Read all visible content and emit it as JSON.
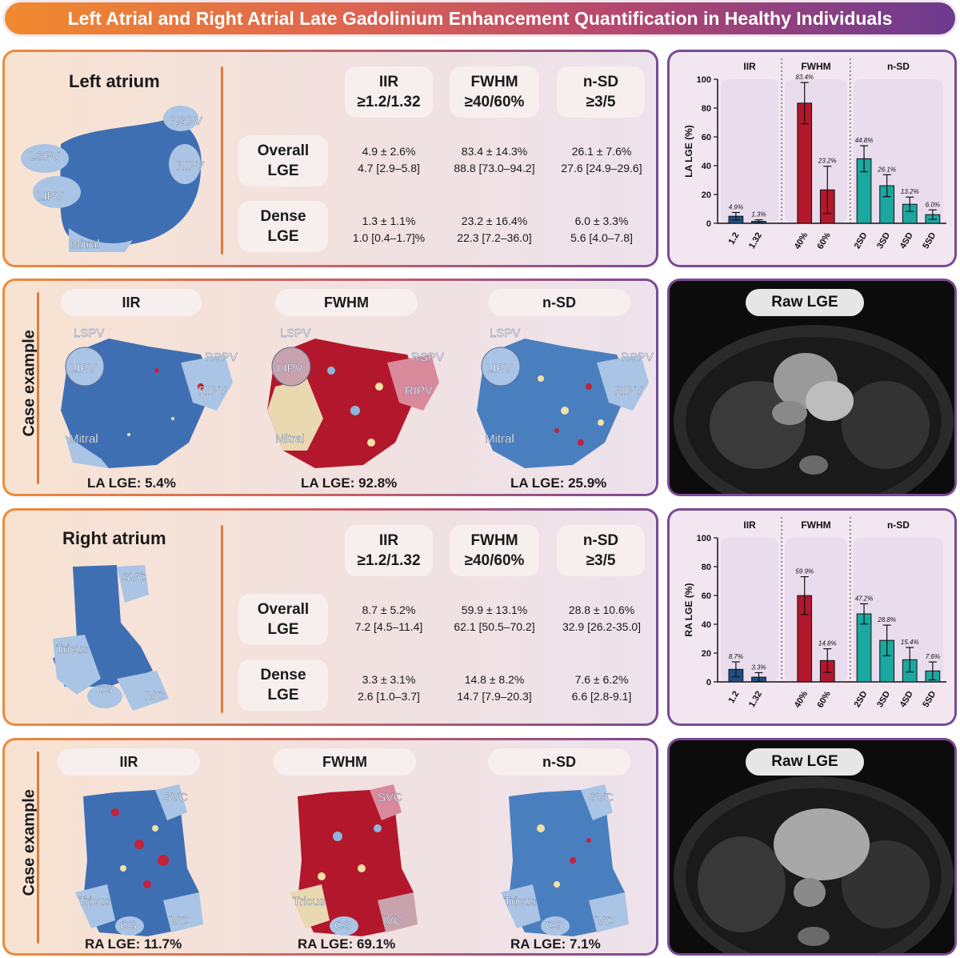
{
  "title": "Left Atrial and Right Atrial Late Gadolinium Enhancement Quantification in Healthy Individuals",
  "colors": {
    "iir": "#1e4e86",
    "fwhm": "#b3172b",
    "nsd": "#1aa8a0",
    "lge_blue": "#3f6fb3",
    "anatomy_light": "#a9c4e4"
  },
  "la": {
    "title": "Left atrium",
    "anatomy_labels": [
      "RSPV",
      "LSPV",
      "RIPV",
      "LIPV",
      "Mitral"
    ],
    "methods": [
      {
        "name": "IIR",
        "threshold": "≥1.2/1.32"
      },
      {
        "name": "FWHM",
        "threshold": "≥40/60%"
      },
      {
        "name": "n-SD",
        "threshold": "≥3/5"
      }
    ],
    "rows": [
      {
        "label1": "Overall",
        "label2": "LGE",
        "values": [
          {
            "mean": "4.9 ± 2.6%",
            "median": "4.7 [2.9–5.8]"
          },
          {
            "mean": "83.4 ± 14.3%",
            "median": "88.8 [73.0–94.2]"
          },
          {
            "mean": "26.1 ± 7.6%",
            "median": "27.6 [24.9–29.6]"
          }
        ]
      },
      {
        "label1": "Dense",
        "label2": "LGE",
        "values": [
          {
            "mean": "1.3 ± 1.1%",
            "median": "1.0 [0.4–1.7]%"
          },
          {
            "mean": "23.2 ± 16.4%",
            "median": "22.3 [7.2–36.0]"
          },
          {
            "mean": "6.0 ± 3.3%",
            "median": "5.6 [4.0–7.8]"
          }
        ]
      }
    ]
  },
  "ra": {
    "title": "Right atrium",
    "anatomy_labels": [
      "SVC",
      "Tricus",
      "CS",
      "IVC"
    ],
    "methods": [
      {
        "name": "IIR",
        "threshold": "≥1.2/1.32"
      },
      {
        "name": "FWHM",
        "threshold": "≥40/60%"
      },
      {
        "name": "n-SD",
        "threshold": "≥3/5"
      }
    ],
    "rows": [
      {
        "label1": "Overall",
        "label2": "LGE",
        "values": [
          {
            "mean": "8.7 ± 5.2%",
            "median": "7.2 [4.5–11.4]"
          },
          {
            "mean": "59.9 ± 13.1%",
            "median": "62.1 [50.5–70.2]"
          },
          {
            "mean": "28.8 ± 10.6%",
            "median": "32.9 [26.2-35.0]"
          }
        ]
      },
      {
        "label1": "Dense",
        "label2": "LGE",
        "values": [
          {
            "mean": "3.3 ± 3.1%",
            "median": "2.6 [1.0–3.7]"
          },
          {
            "mean": "14.8 ± 8.2%",
            "median": "14.7 [7.9–20.3]"
          },
          {
            "mean": "7.6 ± 6.2%",
            "median": "6.6 [2.8-9.1]"
          }
        ]
      }
    ]
  },
  "la_case": {
    "label": "Case example",
    "methods": [
      "IIR",
      "FWHM",
      "n-SD"
    ],
    "anatomy_labels": [
      "LSPV",
      "RSPV",
      "LIPV",
      "RIPV",
      "Mitral"
    ],
    "results": [
      "LA LGE: 5.4%",
      "LA LGE: 92.8%",
      "LA LGE: 25.9%"
    ]
  },
  "ra_case": {
    "label": "Case example",
    "methods": [
      "IIR",
      "FWHM",
      "n-SD"
    ],
    "anatomy_labels": [
      "SVC",
      "Tricus",
      "CS",
      "IVC"
    ],
    "results": [
      "RA LGE: 11.7%",
      "RA LGE: 69.1%",
      "RA LGE: 7.1%"
    ]
  },
  "raw_la": {
    "label": "Raw LGE"
  },
  "raw_ra": {
    "label": "Raw LGE"
  },
  "chart_data": [
    {
      "type": "bar",
      "title": "",
      "ylabel": "LA LGE (%)",
      "ylim": [
        0,
        100
      ],
      "yticks": [
        0,
        20,
        40,
        60,
        80,
        100
      ],
      "groups": [
        "IIR",
        "FWHM",
        "n-SD"
      ],
      "categories": [
        "1.2",
        "1.32",
        "40%",
        "60%",
        "2SD",
        "3SD",
        "4SD",
        "5SD"
      ],
      "group_of_category": [
        "IIR",
        "IIR",
        "FWHM",
        "FWHM",
        "n-SD",
        "n-SD",
        "n-SD",
        "n-SD"
      ],
      "values": [
        4.9,
        1.3,
        83.4,
        23.2,
        44.8,
        26.1,
        13.2,
        6.0
      ],
      "errors": [
        2.6,
        1.1,
        14.3,
        16.4,
        9.0,
        7.6,
        5.0,
        3.3
      ],
      "value_labels": [
        "4.9%",
        "1.3%",
        "83.4%",
        "23.2%",
        "44.8%",
        "26.1%",
        "13.2%",
        "6.0%"
      ]
    },
    {
      "type": "bar",
      "title": "",
      "ylabel": "RA LGE (%)",
      "ylim": [
        0,
        100
      ],
      "yticks": [
        0,
        20,
        40,
        60,
        80,
        100
      ],
      "groups": [
        "IIR",
        "FWHM",
        "n-SD"
      ],
      "categories": [
        "1.2",
        "1.32",
        "40%",
        "60%",
        "2SD",
        "3SD",
        "4SD",
        "5SD"
      ],
      "group_of_category": [
        "IIR",
        "IIR",
        "FWHM",
        "FWHM",
        "n-SD",
        "n-SD",
        "n-SD",
        "n-SD"
      ],
      "values": [
        8.7,
        3.3,
        59.9,
        14.8,
        47.2,
        28.8,
        15.4,
        7.6
      ],
      "errors": [
        5.2,
        3.1,
        13.1,
        8.2,
        7.0,
        10.6,
        8.5,
        6.2
      ],
      "value_labels": [
        "8.7%",
        "3.3%",
        "59.9%",
        "14.8%",
        "47.2%",
        "28.8%",
        "15.4%",
        "7.6%"
      ]
    }
  ]
}
